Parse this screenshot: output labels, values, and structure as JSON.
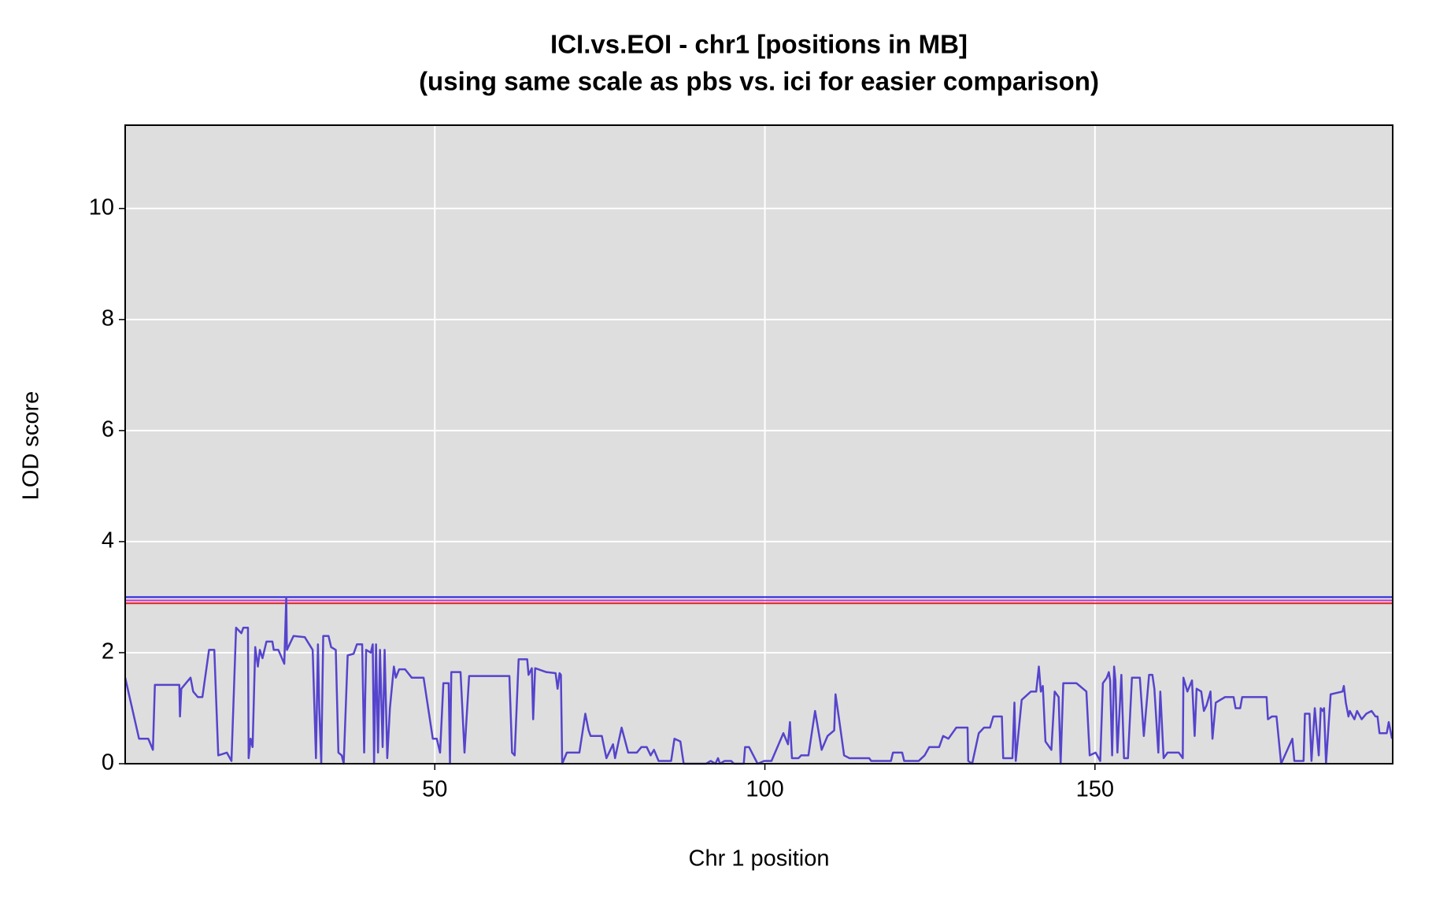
{
  "chart_data": {
    "type": "line",
    "title": [
      "ICI.vs.EOI - chr1 [positions in MB]",
      "(using same scale as pbs vs. ici for easier comparison)"
    ],
    "x_label": "Chr 1 position",
    "y_label": "LOD score",
    "xlim": [
      3.1,
      195.1
    ],
    "ylim": [
      0,
      11.5
    ],
    "xticks": [
      50,
      100,
      150
    ],
    "yticks": [
      0,
      2,
      4,
      6,
      8,
      10
    ],
    "grid": true,
    "background": "#dedede",
    "thresholds": [
      {
        "value": 3.0,
        "color": "#2222dd"
      },
      {
        "value": 2.94,
        "color": "#cc33cc"
      },
      {
        "value": 2.89,
        "color": "#dd2222"
      }
    ],
    "x": [
      3.1,
      5.2,
      6.6,
      7.3,
      7.6,
      11.3,
      11.4,
      11.6,
      13,
      13.4,
      14.1,
      14.8,
      15.8,
      16.6,
      17.2,
      18.5,
      19.2,
      19.9,
      20.7,
      21,
      21.7,
      21.8,
      22.1,
      22.4,
      22.8,
      23.2,
      23.5,
      23.9,
      24.5,
      25.4,
      25.6,
      26.3,
      27.2,
      27.5,
      27.6,
      28.6,
      30.3,
      31.5,
      32,
      32.3,
      32.5,
      32.8,
      33.1,
      33.9,
      34.3,
      35,
      35.4,
      35.9,
      36.2,
      36.8,
      37.7,
      38.2,
      39,
      39.3,
      39.6,
      40.3,
      40.6,
      40.8,
      41.1,
      41.4,
      41.7,
      42.1,
      42.4,
      42.8,
      43.2,
      43.8,
      44.1,
      44.6,
      45.5,
      46.5,
      48.3,
      49.7,
      50.3,
      50.8,
      51.3,
      52.1,
      52.3,
      52.5,
      53.9,
      54.5,
      55.2,
      61.3,
      61.7,
      62.1,
      62.7,
      64,
      64.2,
      64.7,
      64.9,
      65.2,
      66.9,
      68.3,
      68.6,
      68.9,
      69.1,
      69.3,
      70,
      71.9,
      72.8,
      73.3,
      73.6,
      75.3,
      76,
      77,
      77.3,
      78.3,
      79.3,
      80.6,
      81.3,
      82.1,
      82.7,
      83.2,
      83.9,
      85.8,
      86.3,
      87.2,
      87.7,
      91.1,
      91.8,
      92.5,
      92.9,
      93.2,
      93.9,
      94.9,
      95.3,
      96.8,
      97,
      97.6,
      98.9,
      99.9,
      101,
      102.8,
      103.5,
      103.8,
      104.1,
      105.1,
      105.5,
      106.6,
      107.6,
      108.6,
      109.5,
      110.5,
      110.7,
      111.3,
      112,
      112.8,
      115.8,
      116.1,
      119.1,
      119.4,
      120.8,
      121.1,
      123.3,
      124.2,
      124.9,
      126.4,
      127,
      127.8,
      128.4,
      129,
      130.7,
      130.8,
      131.4,
      132.4,
      133.2,
      134.1,
      134.6,
      135.9,
      136.1,
      137.5,
      137.8,
      138,
      138.9,
      140.3,
      141.1,
      141.5,
      141.8,
      142.1,
      142.5,
      143.4,
      143.9,
      144.5,
      144.8,
      145.2,
      147.2,
      148.7,
      149.2,
      150.1,
      150.8,
      151.2,
      151.8,
      152.1,
      152.3,
      152.6,
      152.9,
      153.1,
      153.4,
      154,
      154.4,
      155,
      155.6,
      156.8,
      157.4,
      158.2,
      158.7,
      159,
      159.6,
      159.9,
      160.4,
      161,
      162.7,
      163.3,
      163.4,
      164,
      164.7,
      165.1,
      165.4,
      166.1,
      166.5,
      166.9,
      167.5,
      167.8,
      168.3,
      169.7,
      171,
      171.3,
      172,
      172.3,
      176,
      176.2,
      176.8,
      177.5,
      178.2,
      179.9,
      180.2,
      181.6,
      181.8,
      182.5,
      182.8,
      183.3,
      183.9,
      184.2,
      184.5,
      184.7,
      185,
      185.7,
      187.5,
      187.7,
      188,
      188.4,
      188.6,
      189.3,
      189.7,
      190.4,
      191.1,
      191.9,
      192.5,
      192.8,
      193.1,
      194.2,
      194.5,
      195
    ],
    "series": [
      {
        "color": "#5544cc",
        "values": [
          1.55,
          0.45,
          0.45,
          0.25,
          1.42,
          1.42,
          0.85,
          1.35,
          1.55,
          1.3,
          1.2,
          1.2,
          2.05,
          2.05,
          0.15,
          0.2,
          0.05,
          2.45,
          2.35,
          2.45,
          2.45,
          0.1,
          0.45,
          0.3,
          2.1,
          1.75,
          2.05,
          1.9,
          2.2,
          2.2,
          2.05,
          2.05,
          1.8,
          3.0,
          2.05,
          2.3,
          2.28,
          2.05,
          0.1,
          2.15,
          1.0,
          0.0,
          2.3,
          2.3,
          2.1,
          2.05,
          0.2,
          0.15,
          0.0,
          1.95,
          1.98,
          2.15,
          2.15,
          0.2,
          2.05,
          2.0,
          2.15,
          0.0,
          2.15,
          0.2,
          2.05,
          0.3,
          2.05,
          0.1,
          1.0,
          1.75,
          1.55,
          1.7,
          1.7,
          1.55,
          1.55,
          0.45,
          0.45,
          0.2,
          1.45,
          1.45,
          0.0,
          1.65,
          1.65,
          0.2,
          1.58,
          1.58,
          0.2,
          0.15,
          1.88,
          1.88,
          1.6,
          1.72,
          0.8,
          1.72,
          1.65,
          1.63,
          1.35,
          1.63,
          1.6,
          0.0,
          0.2,
          0.2,
          0.9,
          0.6,
          0.5,
          0.5,
          0.1,
          0.35,
          0.1,
          0.65,
          0.2,
          0.2,
          0.3,
          0.3,
          0.15,
          0.25,
          0.05,
          0.05,
          0.45,
          0.4,
          0.0,
          0.0,
          0.05,
          0.0,
          0.1,
          0.0,
          0.05,
          0.05,
          0.0,
          0.0,
          0.3,
          0.3,
          0.0,
          0.05,
          0.05,
          0.55,
          0.35,
          0.75,
          0.1,
          0.1,
          0.15,
          0.15,
          0.95,
          0.25,
          0.5,
          0.6,
          1.25,
          0.75,
          0.15,
          0.1,
          0.1,
          0.05,
          0.05,
          0.2,
          0.2,
          0.05,
          0.05,
          0.15,
          0.3,
          0.3,
          0.5,
          0.45,
          0.55,
          0.65,
          0.65,
          0.05,
          0.0,
          0.55,
          0.65,
          0.65,
          0.85,
          0.85,
          0.1,
          0.1,
          1.1,
          0.05,
          1.15,
          1.3,
          1.3,
          1.75,
          1.3,
          1.4,
          0.4,
          0.25,
          1.3,
          1.2,
          0.0,
          1.45,
          1.45,
          1.3,
          0.15,
          0.2,
          0.05,
          1.45,
          1.55,
          1.65,
          1.5,
          0.15,
          1.75,
          1.5,
          0.2,
          1.6,
          0.1,
          0.1,
          1.55,
          1.55,
          0.5,
          1.6,
          1.6,
          1.35,
          0.2,
          1.3,
          0.1,
          0.2,
          0.2,
          0.1,
          1.55,
          1.3,
          1.5,
          0.5,
          1.35,
          1.3,
          0.95,
          1.05,
          1.3,
          0.45,
          1.1,
          1.2,
          1.2,
          1.0,
          1.0,
          1.2,
          1.2,
          0.8,
          0.85,
          0.85,
          0.0,
          0.45,
          0.05,
          0.05,
          0.9,
          0.9,
          0.05,
          1.0,
          0.15,
          1.0,
          0.95,
          1.0,
          0.0,
          1.25,
          1.3,
          1.4,
          1.1,
          0.85,
          0.95,
          0.8,
          0.95,
          0.8,
          0.9,
          0.95,
          0.85,
          0.85,
          0.55,
          0.55,
          0.75,
          0.45
        ]
      }
    ]
  }
}
